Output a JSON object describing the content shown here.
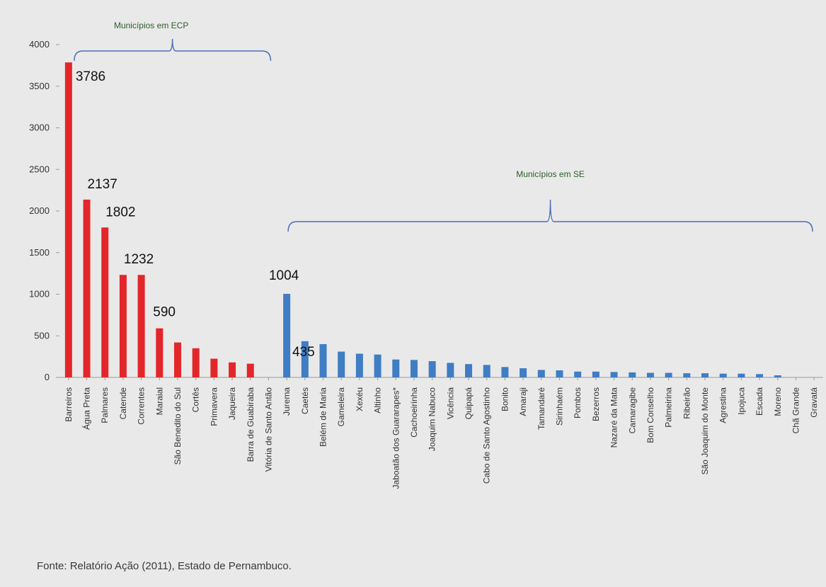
{
  "chart_data": {
    "type": "bar",
    "ylim": [
      0,
      4000
    ],
    "yticks": [
      0,
      500,
      1000,
      1500,
      2000,
      2500,
      3000,
      3500,
      4000
    ],
    "grid": false,
    "colors": {
      "ecp": "#e3262a",
      "se": "#3f7dc4",
      "brace": "#4a6fb7"
    },
    "categories": [
      "Barreiros",
      "Água Preta",
      "Palmares",
      "Catende",
      "Correntes",
      "Maraial",
      "São Benedito do Sul",
      "Cortês",
      "Primavera",
      "Jaqueira",
      "Barra de Guabiraba",
      "Vitória de Santo Antão",
      "Jurema",
      "Caetés",
      "Belém de Maria",
      "Gameleira",
      "Xexéu",
      "Altinho",
      "Jaboatão dos Guararapes*",
      "Cachoeirinha",
      "Joaquim Nabuco",
      "Vicência",
      "Quipapá",
      "Cabo de Santo Agostinho",
      "Bonito",
      "Amaraji",
      "Tamandaré",
      "Sirinhaém",
      "Pombos",
      "Bezerros",
      "Nazaré da Mata",
      "Camaragibe",
      "Bom Conselho",
      "Palmeirina",
      "Ribeirão",
      "São Joaquim do Monte",
      "Agrestina",
      "Ipojuca",
      "Escada",
      "Moreno",
      "Chã Grande",
      "Gravatá"
    ],
    "values": [
      3786,
      2137,
      1802,
      1232,
      1232,
      590,
      420,
      350,
      225,
      180,
      165,
      0,
      1004,
      435,
      400,
      310,
      285,
      275,
      215,
      210,
      195,
      175,
      160,
      150,
      125,
      110,
      90,
      85,
      70,
      70,
      65,
      60,
      55,
      55,
      50,
      50,
      45,
      45,
      40,
      25,
      0,
      0
    ],
    "groups": [
      {
        "name": "ECP",
        "label": "Municípios em ECP",
        "from": 0,
        "to": 11
      },
      {
        "name": "SE",
        "label": "Municípios em SE",
        "from": 12,
        "to": 41
      }
    ],
    "data_labels": [
      {
        "index": 0,
        "text": "3786"
      },
      {
        "index": 1,
        "text": "2137"
      },
      {
        "index": 2,
        "text": "1802"
      },
      {
        "index": 3,
        "text": "1232"
      },
      {
        "index": 5,
        "text": "590"
      },
      {
        "index": 12,
        "text": "1004"
      },
      {
        "index": 13,
        "text": "435"
      }
    ]
  },
  "source": "Fonte: Relatório Ação (2011), Estado de Pernambuco."
}
